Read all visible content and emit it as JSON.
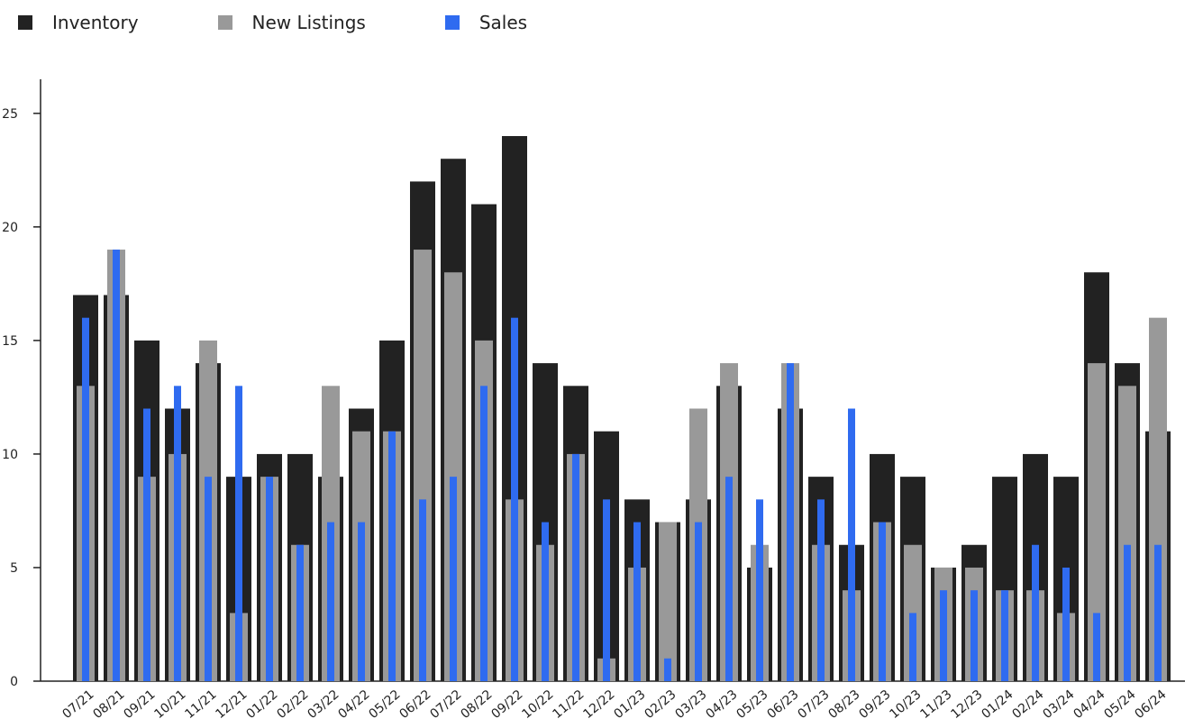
{
  "chart_data": {
    "type": "bar",
    "categories": [
      "07/21",
      "08/21",
      "09/21",
      "10/21",
      "11/21",
      "12/21",
      "01/22",
      "02/22",
      "03/22",
      "04/22",
      "05/22",
      "06/22",
      "07/22",
      "08/22",
      "09/22",
      "10/22",
      "11/22",
      "12/22",
      "01/23",
      "02/23",
      "03/23",
      "04/23",
      "05/23",
      "06/23",
      "07/23",
      "08/23",
      "09/23",
      "10/23",
      "11/23",
      "12/23",
      "01/24",
      "02/24",
      "03/24",
      "04/24",
      "05/24",
      "06/24"
    ],
    "series": [
      {
        "name": "Inventory",
        "color": "#222222",
        "values": [
          17,
          17,
          15,
          12,
          14,
          9,
          10,
          10,
          9,
          12,
          15,
          22,
          23,
          21,
          24,
          14,
          13,
          11,
          8,
          7,
          8,
          13,
          5,
          12,
          9,
          6,
          10,
          9,
          5,
          6,
          9,
          10,
          9,
          18,
          14,
          11
        ]
      },
      {
        "name": "New Listings",
        "color": "#999999",
        "values": [
          13,
          19,
          9,
          10,
          15,
          3,
          9,
          6,
          13,
          11,
          11,
          19,
          18,
          15,
          8,
          6,
          10,
          1,
          5,
          7,
          12,
          14,
          6,
          14,
          6,
          4,
          7,
          6,
          5,
          5,
          4,
          4,
          3,
          14,
          13,
          16
        ]
      },
      {
        "name": "Sales",
        "color": "#2f6bf0",
        "values": [
          16,
          19,
          12,
          13,
          9,
          13,
          9,
          6,
          7,
          7,
          11,
          8,
          9,
          13,
          16,
          7,
          10,
          8,
          7,
          1,
          7,
          9,
          8,
          14,
          8,
          12,
          7,
          3,
          4,
          4,
          4,
          6,
          5,
          3,
          6,
          6
        ]
      }
    ],
    "yticks": [
      0,
      5,
      10,
      15,
      20,
      25
    ],
    "ylim": [
      0,
      26.5
    ],
    "legend_position": "top-left",
    "grid": false
  }
}
